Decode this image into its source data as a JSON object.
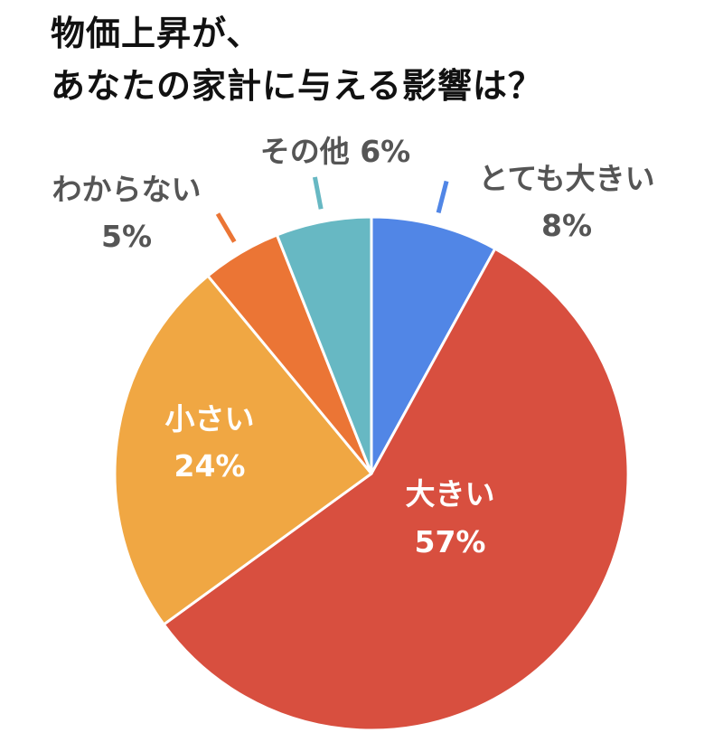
{
  "title": {
    "line1": "物価上昇が、",
    "line2": "あなたの家計に与える影響は？"
  },
  "chart_data": {
    "type": "pie",
    "title": "物価上昇が、あなたの家計に与える影響は？",
    "unit": "%",
    "start_angle": "12 o'clock",
    "direction": "clockwise",
    "slices": [
      {
        "label": "とても大きい",
        "value": 8,
        "display": "8%",
        "color": "#5186E6",
        "label_position": "outside"
      },
      {
        "label": "大きい",
        "value": 57,
        "display": "57%",
        "color": "#D84F3F",
        "label_position": "inside"
      },
      {
        "label": "小さい",
        "value": 24,
        "display": "24%",
        "color": "#F0A743",
        "label_position": "inside"
      },
      {
        "label": "わからない",
        "value": 5,
        "display": "5%",
        "color": "#EB7535",
        "label_position": "outside"
      },
      {
        "label": "その他",
        "value": 6,
        "display": "6%",
        "color": "#67B8C3",
        "label_position": "outside"
      }
    ]
  }
}
